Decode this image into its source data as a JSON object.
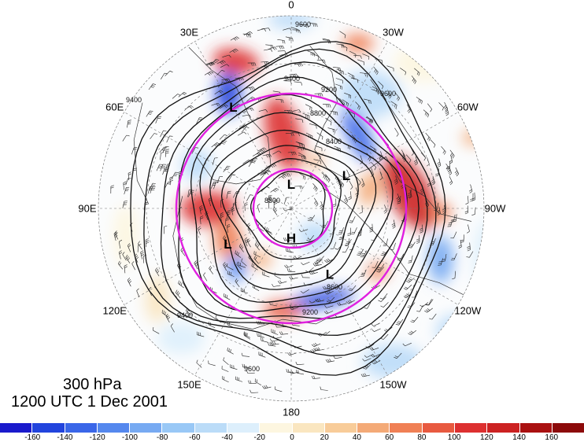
{
  "map": {
    "level_label": "300 hPa",
    "time_label": "1200 UTC 1 Dec 2001",
    "longitude_labels": [
      {
        "text": "0",
        "angle": 0
      },
      {
        "text": "30W",
        "angle": 30
      },
      {
        "text": "60W",
        "angle": 60
      },
      {
        "text": "90W",
        "angle": 90
      },
      {
        "text": "120W",
        "angle": 120
      },
      {
        "text": "150W",
        "angle": 150
      },
      {
        "text": "180",
        "angle": 180
      },
      {
        "text": "150E",
        "angle": 210
      },
      {
        "text": "120E",
        "angle": 240
      },
      {
        "text": "90E",
        "angle": 270
      },
      {
        "text": "60E",
        "angle": 300
      },
      {
        "text": "30E",
        "angle": 330
      }
    ],
    "pressure_centers": [
      {
        "text": "L",
        "lon_label": "30E",
        "dist": 0.6
      },
      {
        "text": "L",
        "lon_label": "0",
        "dist": 0.12
      },
      {
        "text": "L",
        "lon_label": "60W",
        "dist": 0.33
      },
      {
        "text": "H",
        "lon_label": "180",
        "dist": 0.16
      },
      {
        "text": "L",
        "lon_label": "120E",
        "dist": 0.38
      },
      {
        "text": "L",
        "lon_label": "150W",
        "dist": 0.4
      }
    ],
    "contour_labels": [
      "9600",
      "9400",
      "9200",
      "8800",
      "8400",
      "8800",
      "9400",
      "9600",
      "9200",
      "8600",
      "9600",
      "9400"
    ],
    "colorbar": {
      "ticks": [
        "-160",
        "-140",
        "-120",
        "-100",
        "-80",
        "-60",
        "-40",
        "-20",
        "0",
        "20",
        "40",
        "60",
        "80",
        "100",
        "120",
        "140",
        "160"
      ],
      "colors": [
        "#1a1acc",
        "#2244dd",
        "#3a66e8",
        "#5588ee",
        "#77aaf2",
        "#99c8f6",
        "#bbdcf8",
        "#ddeffc",
        "#fdf6e0",
        "#fae6c0",
        "#f8cc99",
        "#f4aa77",
        "#f08055",
        "#e85a40",
        "#dd3030",
        "#cc2222",
        "#aa1111",
        "#8c0a0a"
      ]
    }
  }
}
